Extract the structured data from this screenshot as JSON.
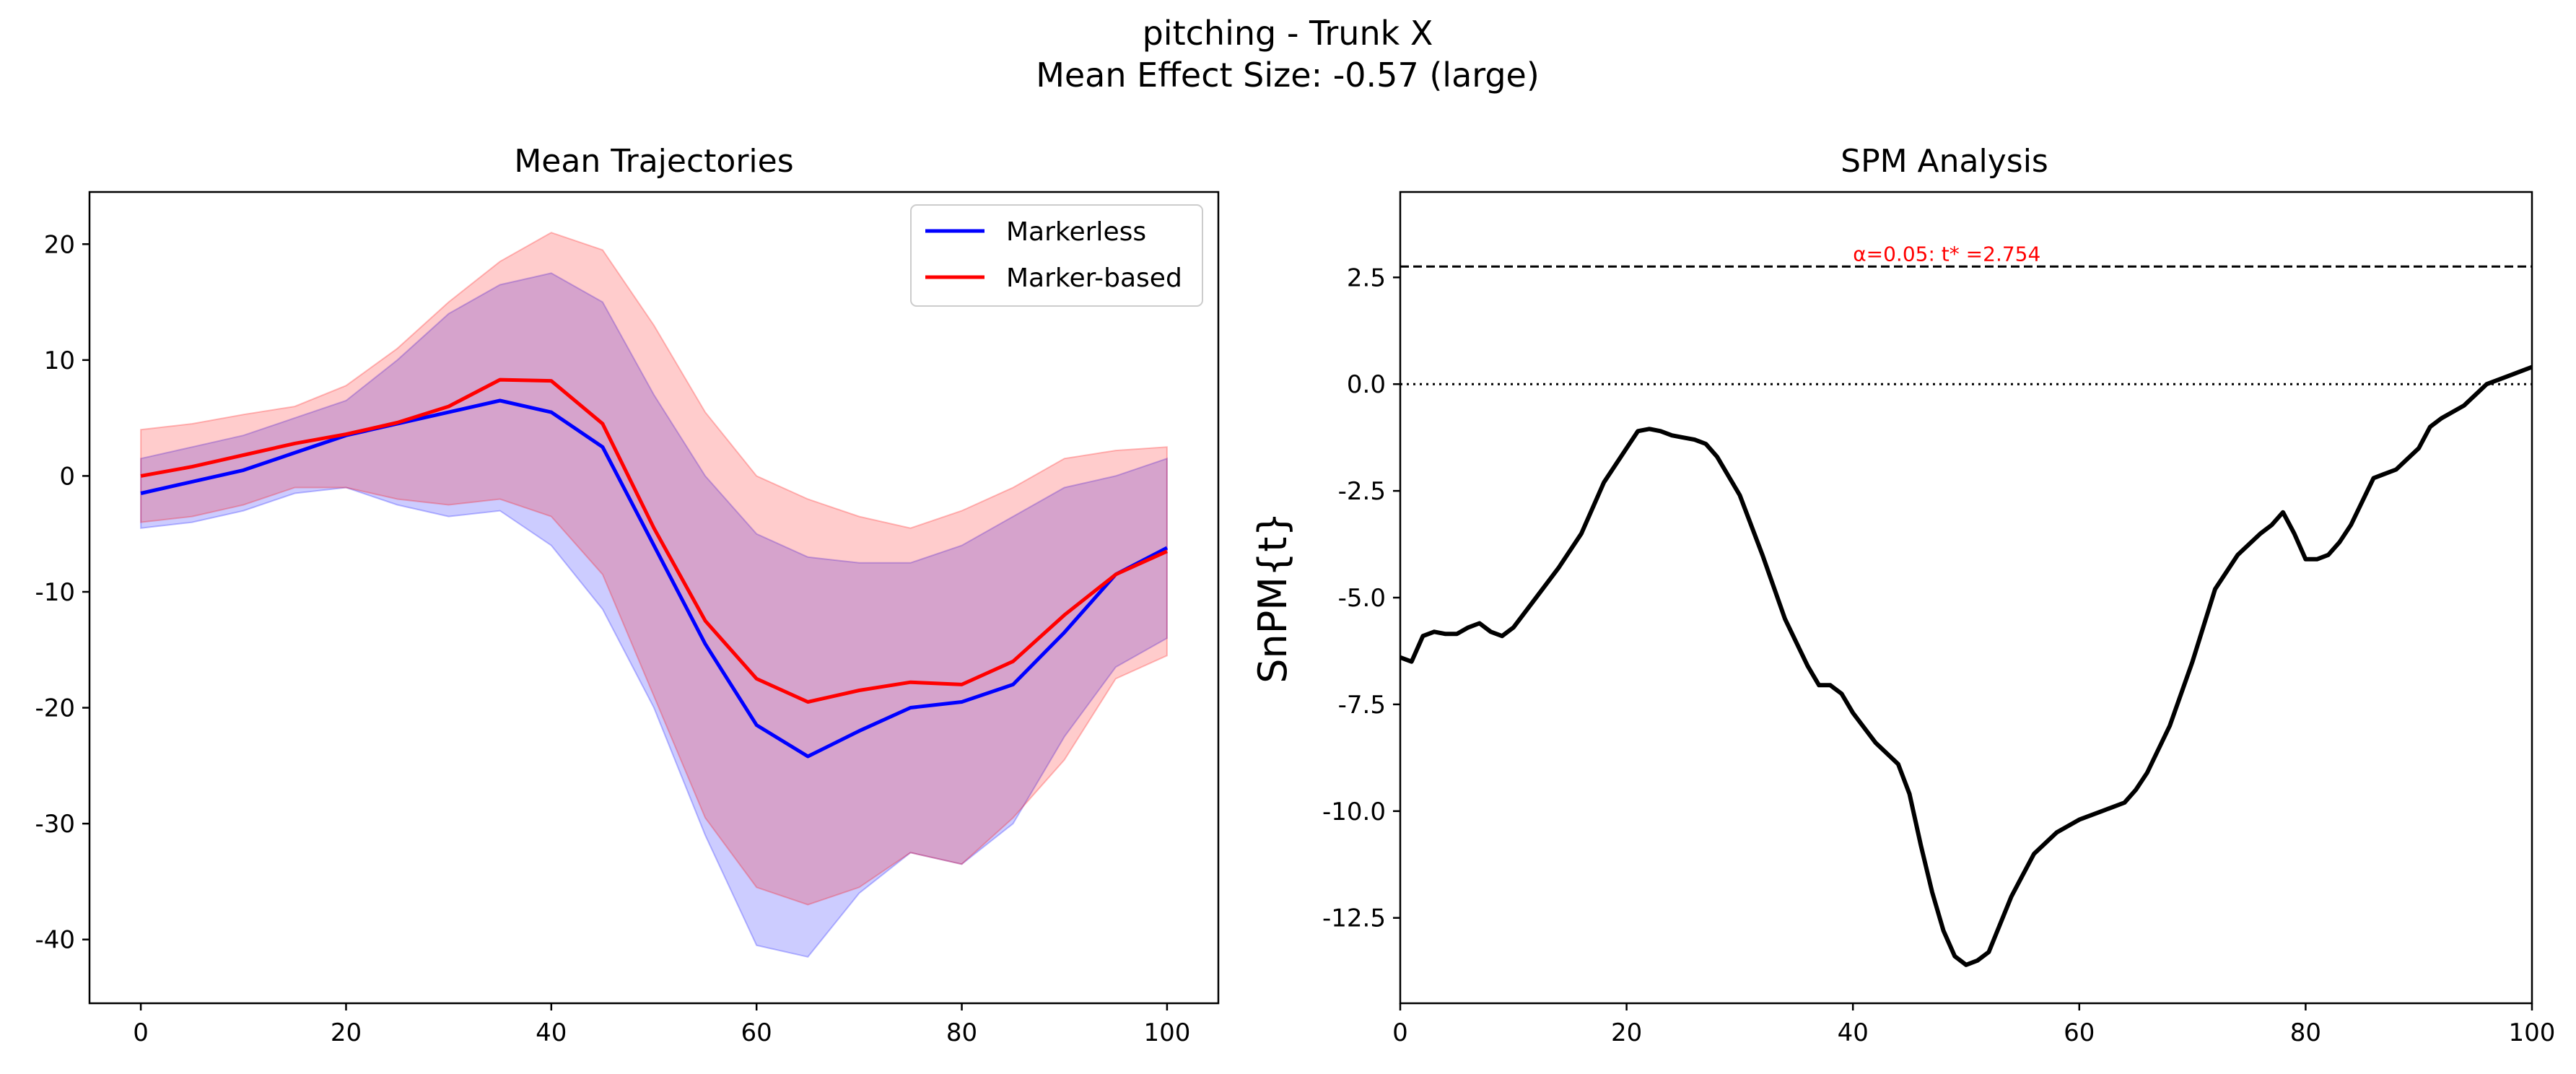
{
  "suptitle": {
    "line1": "pitching - Trunk X",
    "line2": "Mean Effect Size: -0.57 (large)"
  },
  "colors": {
    "markerless": "#0000ff",
    "marker_based": "#ff0000",
    "spm_line": "#000000",
    "threshold": "#000000",
    "annotation": "#ff0000"
  },
  "chart_data": [
    {
      "type": "line",
      "title": "Mean Trajectories",
      "xlabel": "",
      "ylabel": "",
      "xlim": [
        -5,
        105
      ],
      "ylim": [
        -45.5,
        24.5
      ],
      "xticks": [
        0,
        20,
        40,
        60,
        80,
        100
      ],
      "yticks": [
        20,
        10,
        0,
        -10,
        -20,
        -30,
        -40
      ],
      "grid": false,
      "legend_position": "top-right",
      "x": [
        0,
        5,
        10,
        15,
        20,
        25,
        30,
        35,
        40,
        45,
        50,
        55,
        60,
        65,
        70,
        75,
        80,
        85,
        90,
        95,
        100
      ],
      "series": [
        {
          "name": "Markerless",
          "color": "#0000ff",
          "mean": [
            -1.5,
            -0.5,
            0.5,
            2.0,
            3.5,
            4.5,
            5.5,
            6.5,
            5.5,
            2.5,
            -6.0,
            -14.5,
            -21.5,
            -24.2,
            -22.0,
            -20.0,
            -19.5,
            -18.0,
            -13.5,
            -8.5,
            -6.2
          ],
          "upper": [
            1.5,
            2.5,
            3.5,
            5.0,
            6.5,
            10.0,
            14.0,
            16.5,
            17.5,
            15.0,
            7.0,
            0.0,
            -5.0,
            -7.0,
            -7.5,
            -7.5,
            -6.0,
            -3.5,
            -1.0,
            0.0,
            1.5
          ],
          "lower": [
            -4.5,
            -4.0,
            -3.0,
            -1.5,
            -1.0,
            -2.5,
            -3.5,
            -3.0,
            -6.0,
            -11.5,
            -20.0,
            -31.0,
            -40.5,
            -41.5,
            -36.0,
            -32.5,
            -33.5,
            -30.0,
            -22.5,
            -16.5,
            -14.0
          ]
        },
        {
          "name": "Marker-based",
          "color": "#ff0000",
          "mean": [
            0.0,
            0.8,
            1.8,
            2.8,
            3.6,
            4.6,
            6.0,
            8.3,
            8.2,
            4.5,
            -4.5,
            -12.5,
            -17.5,
            -19.5,
            -18.5,
            -17.8,
            -18.0,
            -16.0,
            -12.0,
            -8.5,
            -6.5
          ],
          "upper": [
            4.0,
            4.5,
            5.3,
            6.0,
            7.8,
            11.0,
            15.0,
            18.5,
            21.0,
            19.5,
            13.0,
            5.5,
            0.0,
            -2.0,
            -3.5,
            -4.5,
            -3.0,
            -1.0,
            1.5,
            2.2,
            2.5
          ],
          "lower": [
            -4.0,
            -3.5,
            -2.5,
            -1.0,
            -1.0,
            -2.0,
            -2.5,
            -2.0,
            -3.5,
            -8.5,
            -19.0,
            -29.5,
            -35.5,
            -37.0,
            -35.5,
            -32.5,
            -33.5,
            -29.5,
            -24.5,
            -17.5,
            -15.5
          ]
        }
      ]
    },
    {
      "type": "line",
      "title": "SPM Analysis",
      "xlabel": "",
      "ylabel": "SnPM{t}",
      "xlim": [
        0,
        100
      ],
      "ylim": [
        -14.5,
        4.5
      ],
      "xticks": [
        0,
        20,
        40,
        60,
        80,
        100
      ],
      "yticks": [
        2.5,
        0.0,
        -2.5,
        -5.0,
        -7.5,
        -10.0,
        -12.5
      ],
      "ytick_labels": [
        "2.5",
        "0.0",
        "-2.5",
        "-5.0",
        "-7.5",
        "-10.0",
        "-12.5"
      ],
      "grid": false,
      "threshold": 2.754,
      "threshold_label": "α=0.05:  t* =2.754",
      "x": [
        0,
        1,
        2,
        3,
        4,
        5,
        6,
        7,
        8,
        9,
        10,
        12,
        14,
        16,
        18,
        20,
        21,
        22,
        23,
        24,
        25,
        26,
        27,
        28,
        30,
        32,
        34,
        36,
        37,
        38,
        39,
        40,
        42,
        44,
        45,
        46,
        47,
        48,
        49,
        50,
        51,
        52,
        54,
        56,
        58,
        60,
        62,
        64,
        65,
        66,
        68,
        70,
        72,
        74,
        76,
        77,
        78,
        79,
        80,
        81,
        82,
        83,
        84,
        86,
        87,
        88,
        90,
        91,
        92,
        94,
        96,
        98,
        100
      ],
      "values": [
        -6.4,
        -6.5,
        -5.9,
        -5.8,
        -5.85,
        -5.85,
        -5.7,
        -5.6,
        -5.8,
        -5.9,
        -5.7,
        -5.0,
        -4.3,
        -3.5,
        -2.3,
        -1.5,
        -1.1,
        -1.05,
        -1.1,
        -1.2,
        -1.25,
        -1.3,
        -1.4,
        -1.7,
        -2.6,
        -4.0,
        -5.5,
        -6.6,
        -7.05,
        -7.05,
        -7.25,
        -7.7,
        -8.4,
        -8.9,
        -9.6,
        -10.8,
        -11.9,
        -12.8,
        -13.4,
        -13.6,
        -13.5,
        -13.3,
        -12.0,
        -11.0,
        -10.5,
        -10.2,
        -10.0,
        -9.8,
        -9.5,
        -9.1,
        -8.0,
        -6.5,
        -4.8,
        -4.0,
        -3.5,
        -3.3,
        -3.0,
        -3.5,
        -4.1,
        -4.1,
        -4.0,
        -3.7,
        -3.3,
        -2.2,
        -2.1,
        -2.0,
        -1.5,
        -1.0,
        -0.8,
        -0.5,
        0.0,
        0.2,
        0.4
      ]
    }
  ]
}
